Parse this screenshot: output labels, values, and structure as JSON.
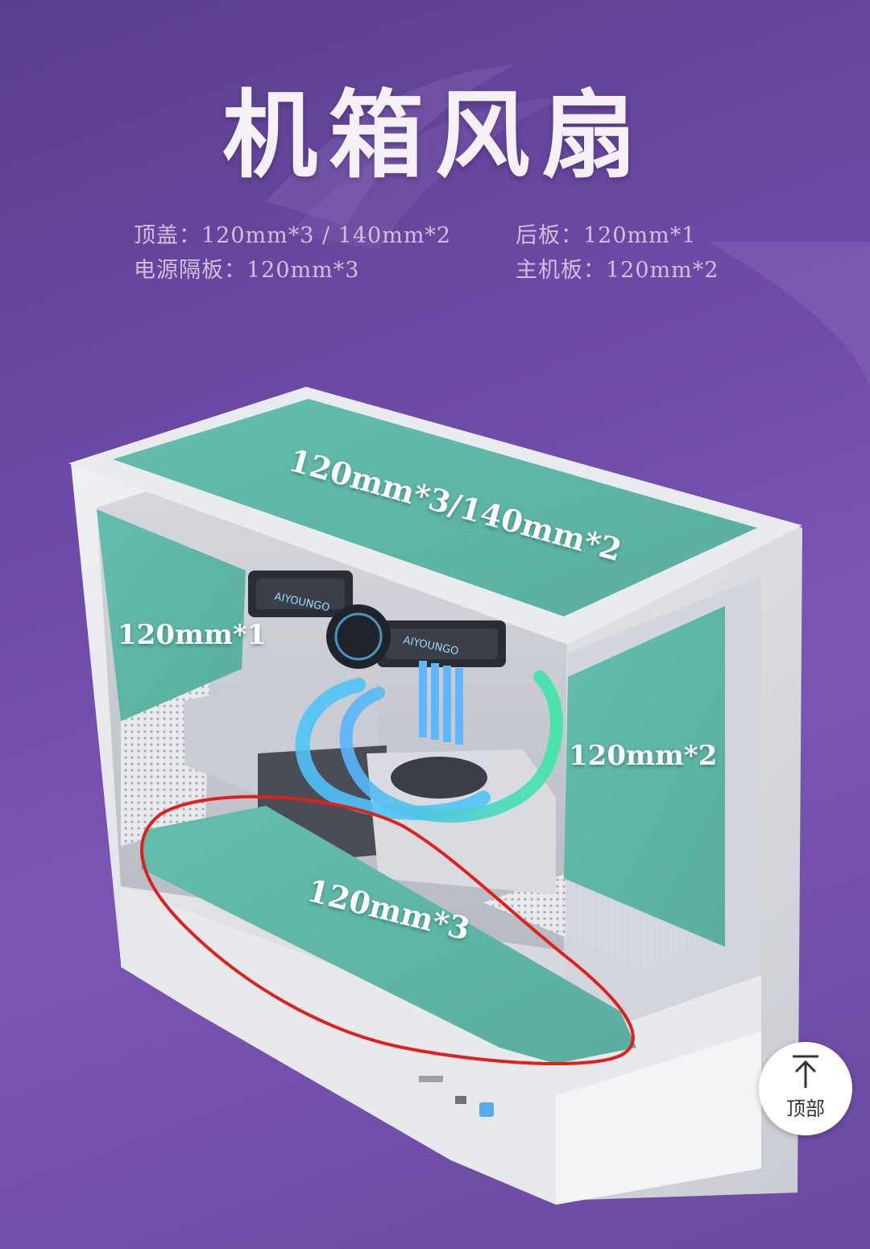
{
  "page": {
    "title": "机箱风扇"
  },
  "specs": [
    {
      "label": "顶盖：120mm*3 / 140mm*2"
    },
    {
      "label": "后板：120mm*1"
    },
    {
      "label": "电源隔板：120mm*3"
    },
    {
      "label": "主机板：120mm*2"
    }
  ],
  "overlay_labels": {
    "top": "120mm*3/140mm*2",
    "rear": "120mm*1",
    "motherboard": "120mm*2",
    "psu_shroud": "120mm*3"
  },
  "cooler_brand": "AIYOUNGO",
  "back_to_top": {
    "label": "顶部",
    "icon": "arrow-up-icon"
  },
  "colors": {
    "background": "#6d4aa6",
    "zone_fill": "#5fb8a8",
    "annotation_circle": "#e0201b",
    "case_frame": "#e4e6ea",
    "loop_tube": "#4fc3f7"
  }
}
